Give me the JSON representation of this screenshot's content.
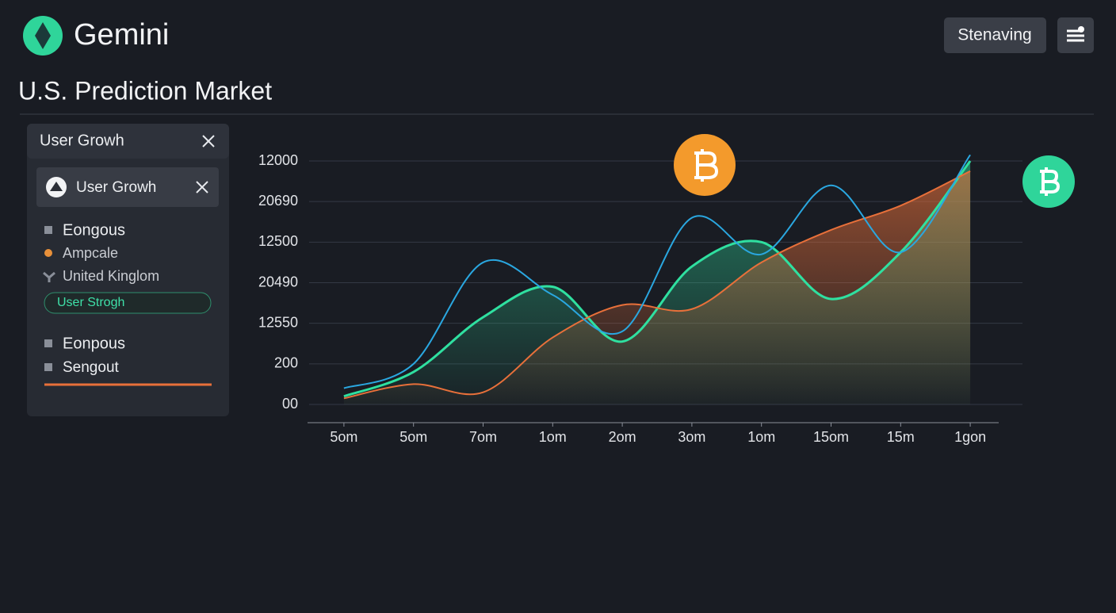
{
  "header": {
    "brand": "Gemini",
    "button": "Stenaving"
  },
  "title": "U.S. Prediction Market",
  "sidebar": {
    "title": "User Growh",
    "card": "User Growh",
    "items": [
      "Eongous",
      "Ampcale",
      "United Kinglom"
    ],
    "pill": "User Strogh",
    "items2": [
      "Eonpous",
      "Sengout"
    ]
  },
  "chart_data": {
    "type": "line",
    "categories": [
      "5om",
      "5om",
      "7om",
      "1om",
      "2om",
      "3om",
      "1om",
      "15om",
      "15m",
      "1gon"
    ],
    "series": [
      {
        "color": "#2fe0a0",
        "area": true,
        "values": [
          0.2,
          0.8,
          2.15,
          2.9,
          1.55,
          3.4,
          4.0,
          2.6,
          3.75,
          6.0
        ]
      },
      {
        "color": "#e8703a",
        "area": true,
        "values": [
          0.15,
          0.5,
          0.3,
          1.65,
          2.45,
          2.35,
          3.5,
          4.3,
          4.9,
          5.75
        ]
      },
      {
        "color": "#2aa7e0",
        "area": false,
        "values": [
          0.4,
          1.0,
          3.5,
          2.7,
          1.8,
          4.6,
          3.7,
          5.4,
          3.75,
          6.15
        ]
      }
    ],
    "ylim": [
      0,
      6
    ],
    "yticks": [
      {
        "value": 0,
        "label": "00"
      },
      {
        "value": 1,
        "label": "200"
      },
      {
        "value": 2,
        "label": "12550"
      },
      {
        "value": 3,
        "label": "20490"
      },
      {
        "value": 4,
        "label": "12500"
      },
      {
        "value": 5,
        "label": "20690"
      },
      {
        "value": 6,
        "label": "12000"
      }
    ],
    "grid": true
  }
}
